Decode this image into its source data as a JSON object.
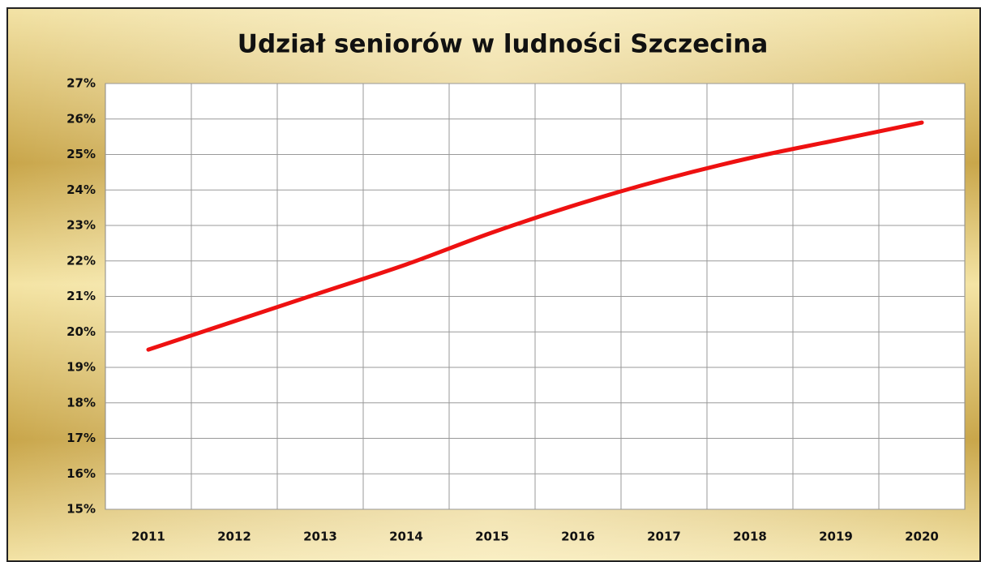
{
  "chart_data": {
    "type": "line",
    "title": "Udział seniorów w ludności Szczecina",
    "categories": [
      "2011",
      "2012",
      "2013",
      "2014",
      "2015",
      "2016",
      "2017",
      "2018",
      "2019",
      "2020"
    ],
    "series": [
      {
        "name": "Udział seniorów",
        "color": "#ee1111",
        "values": [
          19.5,
          20.3,
          21.1,
          21.9,
          22.8,
          23.6,
          24.3,
          24.9,
          25.4,
          25.9
        ]
      }
    ],
    "ylim": [
      15,
      27
    ],
    "yticks": [
      {
        "value": 15,
        "label": "15%"
      },
      {
        "value": 16,
        "label": "16%"
      },
      {
        "value": 17,
        "label": "17%"
      },
      {
        "value": 18,
        "label": "18%"
      },
      {
        "value": 19,
        "label": "19%"
      },
      {
        "value": 20,
        "label": "20%"
      },
      {
        "value": 21,
        "label": "21%"
      },
      {
        "value": 22,
        "label": "22%"
      },
      {
        "value": 23,
        "label": "23%"
      },
      {
        "value": 24,
        "label": "24%"
      },
      {
        "value": 25,
        "label": "25%"
      },
      {
        "value": 26,
        "label": "26%"
      },
      {
        "value": 27,
        "label": "27%"
      }
    ],
    "grid": true
  }
}
